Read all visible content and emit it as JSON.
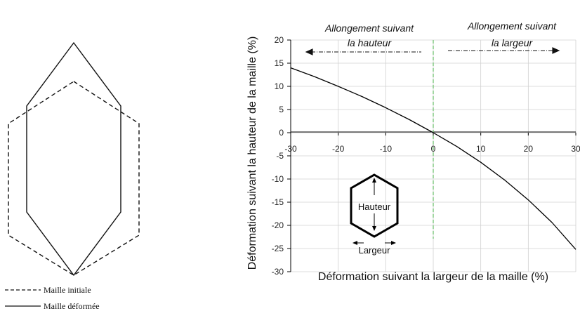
{
  "legend": {
    "initial": "Maille initiale",
    "deformed": "Maille déformée"
  },
  "chart_data": {
    "type": "line",
    "title": "",
    "xlabel": "Déformation suivant la largeur de la maille  (%)",
    "ylabel": "Déformation suivant la hauteur de la maille (%)",
    "xlim": [
      -30,
      30
    ],
    "ylim": [
      -30,
      20
    ],
    "xticks": [
      -30,
      -20,
      -10,
      0,
      10,
      20,
      30
    ],
    "yticks": [
      20,
      15,
      10,
      5,
      0,
      -5,
      -10,
      -15,
      -20,
      -25,
      -30
    ],
    "grid": true,
    "series": [
      {
        "x": [
          -30,
          -25,
          -20,
          -15,
          -10,
          -5,
          0,
          5,
          10,
          15,
          20,
          25,
          30
        ],
        "values": [
          14,
          12.1,
          10,
          7.8,
          5.4,
          2.8,
          0,
          -3,
          -6.4,
          -10.2,
          -14.5,
          -19.4,
          -25.2
        ],
        "color": "#000000"
      }
    ],
    "reference_line": {
      "x": 0,
      "color": "#7cc87c",
      "style": "dashed"
    },
    "annotations": {
      "left_line1": "Allongement suivant",
      "left_line2": "la hauteur",
      "right_line1": "Allongement suivant",
      "right_line2": "la largeur",
      "hauteur": "Hauteur",
      "largeur": "Largeur"
    }
  }
}
